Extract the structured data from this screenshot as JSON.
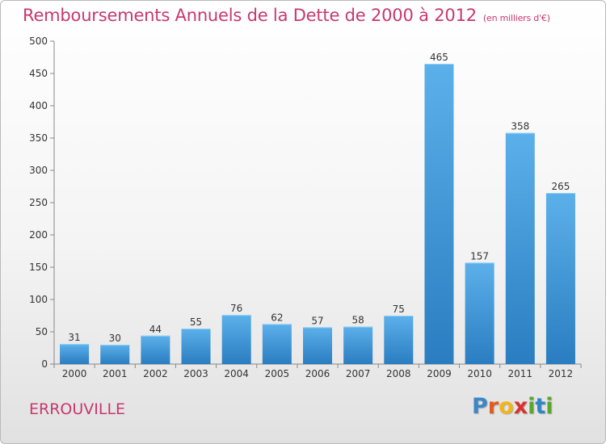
{
  "title": "Remboursements Annuels de la Dette de 2000 à 2012",
  "subtitle": "(en milliers d'€)",
  "commune": "ERROUVILLE",
  "brand": {
    "letters": [
      "P",
      "r",
      "o",
      "x",
      "i",
      "t",
      "i"
    ],
    "colors": [
      "#3d86c6",
      "#e35a1e",
      "#f2b51a",
      "#d9332d",
      "#5aa52e",
      "#2d86c6",
      "#5aa52e"
    ]
  },
  "colors": {
    "bar_light": "#5cb0ea",
    "bar_dark": "#2a7dc0",
    "title": "#c8386e"
  },
  "chart_data": {
    "type": "bar",
    "categories": [
      "2000",
      "2001",
      "2002",
      "2003",
      "2004",
      "2005",
      "2006",
      "2007",
      "2008",
      "2009",
      "2010",
      "2011",
      "2012"
    ],
    "values": [
      31,
      30,
      44,
      55,
      76,
      62,
      57,
      58,
      75,
      465,
      157,
      358,
      265
    ],
    "ylim": [
      0,
      500
    ],
    "yticks": [
      0,
      50,
      100,
      150,
      200,
      250,
      300,
      350,
      400,
      450,
      500
    ],
    "grid": false,
    "xlabel": "",
    "ylabel": ""
  }
}
